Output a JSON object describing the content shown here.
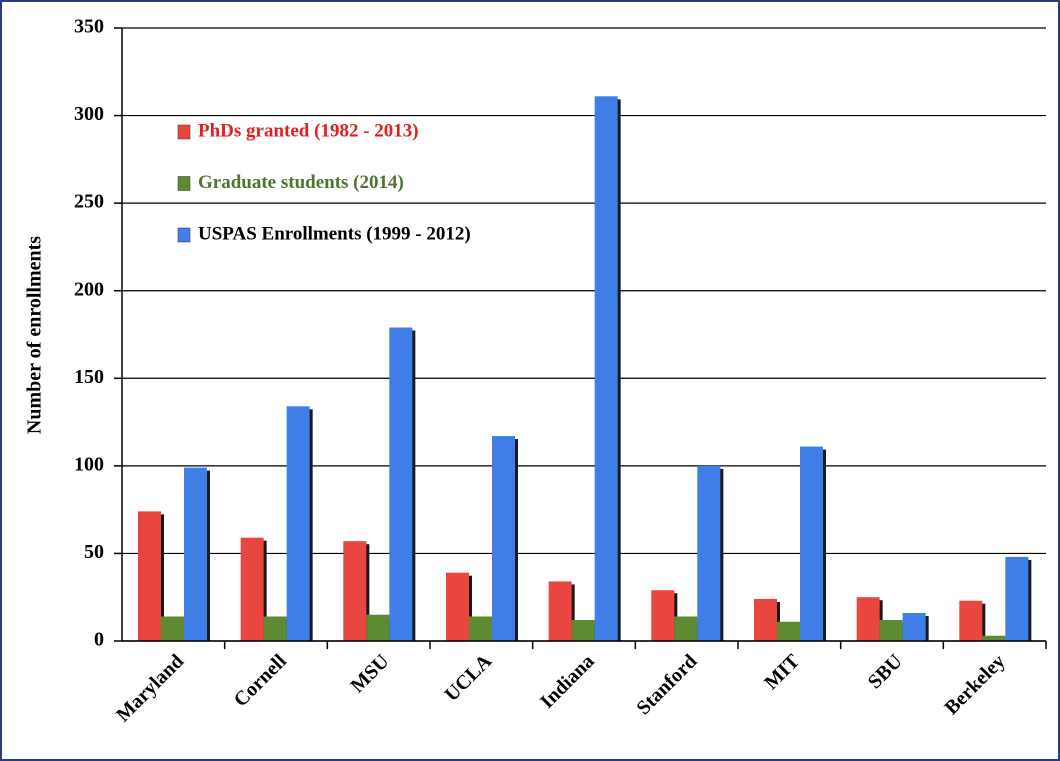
{
  "chart_data": {
    "type": "bar",
    "y_label": "Number of enrollments",
    "categories": [
      "Maryland",
      "Cornell",
      "MSU",
      "UCLA",
      "Indiana",
      "Stanford",
      "MIT",
      "SBU",
      "Berkeley"
    ],
    "series": [
      {
        "name": "PhDs granted (1982 - 2013)",
        "color": "#e8463f",
        "text_color": "#e0201c",
        "values": [
          74,
          59,
          57,
          39,
          34,
          29,
          24,
          25,
          23
        ]
      },
      {
        "name": "Graduate students (2014)",
        "color": "#5e8a34",
        "text_color": "#4f7430",
        "values": [
          14,
          14,
          15,
          14,
          12,
          14,
          11,
          12,
          3
        ]
      },
      {
        "name": "USPAS Enrollments (1999 - 2012)",
        "color": "#3f7ee6",
        "text_color": "#000000",
        "values": [
          99,
          134,
          179,
          117,
          311,
          100,
          111,
          16,
          48
        ]
      }
    ],
    "ylim": [
      0,
      350
    ],
    "yticks": [
      0,
      50,
      100,
      150,
      200,
      250,
      300,
      350
    ],
    "grid": true,
    "legend": "upper-left"
  }
}
